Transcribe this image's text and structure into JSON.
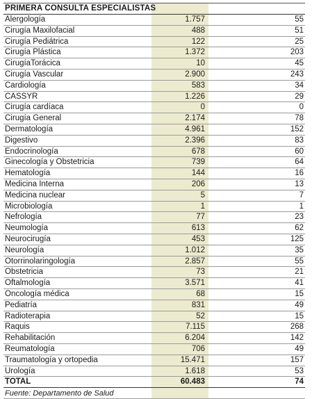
{
  "header": "PRIMERA CONSULTA ESPECIALISTAS",
  "rows": [
    {
      "name": "Alergología",
      "v1": "1.757",
      "v2": "55"
    },
    {
      "name": "Cirugía Maxilofacial",
      "v1": "488",
      "v2": "51"
    },
    {
      "name": "Cirugía Pediátrica",
      "v1": "122",
      "v2": "25"
    },
    {
      "name": "Cirugía Plástica",
      "v1": "1.372",
      "v2": "203"
    },
    {
      "name": "CirugíaTorácica",
      "v1": "10",
      "v2": "45"
    },
    {
      "name": "Cirugía Vascular",
      "v1": "2.900",
      "v2": "243"
    },
    {
      "name": "Cardiología",
      "v1": "583",
      "v2": "34"
    },
    {
      "name": "CASSYR",
      "v1": "1.226",
      "v2": "29"
    },
    {
      "name": "Cirugía cardíaca",
      "v1": "0",
      "v2": "0"
    },
    {
      "name": "Cirugía General",
      "v1": "2.174",
      "v2": "78"
    },
    {
      "name": "Dermatología",
      "v1": "4.961",
      "v2": "152"
    },
    {
      "name": "Digestivo",
      "v1": "2.396",
      "v2": "83"
    },
    {
      "name": "Endocrinología",
      "v1": "678",
      "v2": "60"
    },
    {
      "name": "Ginecología y Obstetricia",
      "v1": "739",
      "v2": "64"
    },
    {
      "name": "Hematología",
      "v1": "144",
      "v2": "16"
    },
    {
      "name": "Medicina Interna",
      "v1": "206",
      "v2": "13"
    },
    {
      "name": "Medicina nuclear",
      "v1": "5",
      "v2": "7"
    },
    {
      "name": "Microbiología",
      "v1": "1",
      "v2": "1"
    },
    {
      "name": "Nefrología",
      "v1": "77",
      "v2": "23"
    },
    {
      "name": "Neumología",
      "v1": "613",
      "v2": "62"
    },
    {
      "name": "Neurocirugía",
      "v1": "453",
      "v2": "125"
    },
    {
      "name": "Neurología",
      "v1": "1.012",
      "v2": "35"
    },
    {
      "name": "Otorrinolaringología",
      "v1": "2.857",
      "v2": "55"
    },
    {
      "name": "Obstetricia",
      "v1": "73",
      "v2": "21"
    },
    {
      "name": "Oftalmología",
      "v1": "3.571",
      "v2": "41"
    },
    {
      "name": "Oncología médica",
      "v1": "68",
      "v2": "15"
    },
    {
      "name": "Pediatría",
      "v1": "831",
      "v2": "49"
    },
    {
      "name": "Radioterapia",
      "v1": "52",
      "v2": "15"
    },
    {
      "name": "Raquis",
      "v1": "7.115",
      "v2": "268"
    },
    {
      "name": "Rehabilitación",
      "v1": "6.204",
      "v2": "142"
    },
    {
      "name": "Reumatología",
      "v1": "706",
      "v2": "49"
    },
    {
      "name": "Traumatología y ortopedia",
      "v1": "15.471",
      "v2": "157"
    },
    {
      "name": "Urología",
      "v1": "1.618",
      "v2": "53"
    }
  ],
  "total": {
    "name": "TOTAL",
    "v1": "60.483",
    "v2": "74"
  },
  "footer": "Fuente: Departamento de Salud",
  "colors": {
    "highlight_column": "#ecebcf"
  }
}
